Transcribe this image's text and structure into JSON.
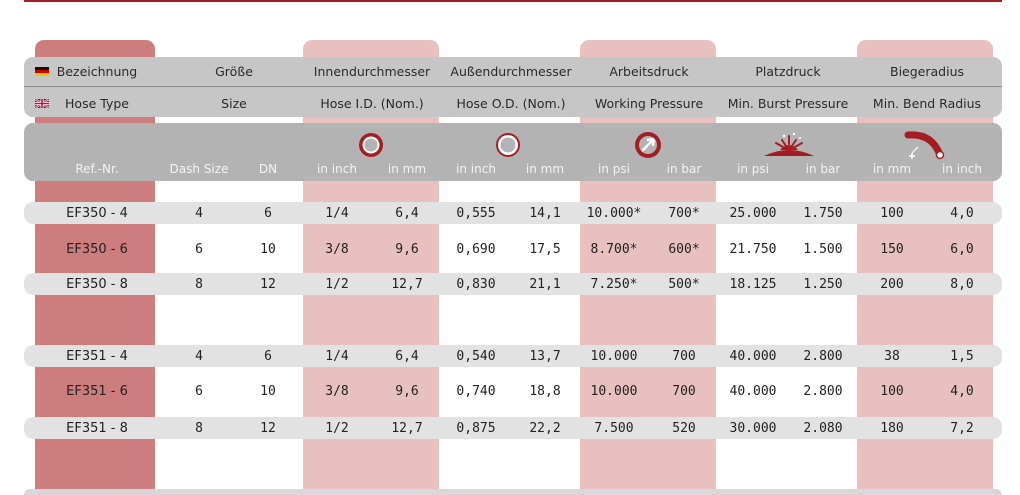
{
  "headers": {
    "de": [
      "Bezeichnung",
      "Größe",
      "Innendurchmesser",
      "Außendurchmesser",
      "Arbeitsdruck",
      "Platzdruck",
      "Biegeradius"
    ],
    "en": [
      "Hose Type",
      "Size",
      "Hose I.D. (Nom.)",
      "Hose O.D. (Nom.)",
      "Working Pressure",
      "Min. Burst Pressure",
      "Min. Bend Radius"
    ]
  },
  "subheaders": [
    "Ref.-Nr.",
    "Dash Size",
    "DN",
    "in inch",
    "in mm",
    "in inch",
    "in mm",
    "in psi",
    "in bar",
    "in psi",
    "in bar",
    "in mm",
    "in inch"
  ],
  "icons": [
    "inner-diameter-icon",
    "outer-diameter-icon",
    "working-pressure-gauge-icon",
    "burst-pressure-icon",
    "bend-radius-icon"
  ],
  "colors": {
    "accent": "#a51d22",
    "band_dark": "#cd7d7d",
    "band_light": "#e8c0c0",
    "header_grey": "#c6c6c6"
  },
  "rows": [
    [
      "EF350 - 4",
      "4",
      "6",
      "1/4",
      "6,4",
      "0,555",
      "14,1",
      "10.000*",
      "700*",
      "25.000",
      "1.750",
      "100",
      "4,0"
    ],
    [
      "EF350 - 6",
      "6",
      "10",
      "3/8",
      "9,6",
      "0,690",
      "17,5",
      "8.700*",
      "600*",
      "21.750",
      "1.500",
      "150",
      "6,0"
    ],
    [
      "EF350 - 8",
      "8",
      "12",
      "1/2",
      "12,7",
      "0,830",
      "21,1",
      "7.250*",
      "500*",
      "18.125",
      "1.250",
      "200",
      "8,0"
    ],
    [
      "EF351 - 4",
      "4",
      "6",
      "1/4",
      "6,4",
      "0,540",
      "13,7",
      "10.000",
      "700",
      "40.000",
      "2.800",
      "38",
      "1,5"
    ],
    [
      "EF351 - 6",
      "6",
      "10",
      "3/8",
      "9,6",
      "0,740",
      "18,8",
      "10.000",
      "700",
      "40.000",
      "2.800",
      "100",
      "4,0"
    ],
    [
      "EF351 - 8",
      "8",
      "12",
      "1/2",
      "12,7",
      "0,875",
      "22,2",
      "7.500",
      "520",
      "30.000",
      "2.080",
      "180",
      "7,2"
    ]
  ]
}
